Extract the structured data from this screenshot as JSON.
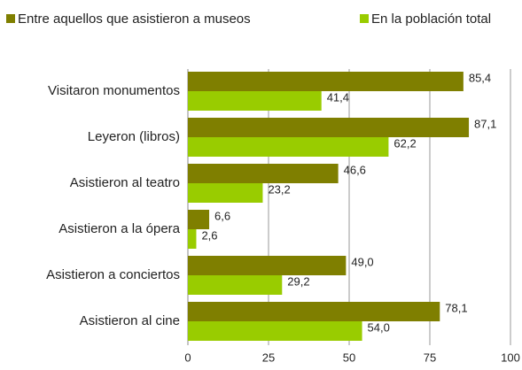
{
  "chart_data": {
    "type": "bar",
    "orientation": "horizontal",
    "categories": [
      "Visitaron monumentos",
      "Leyeron (libros)",
      "Asistieron al teatro",
      "Asistieron a la ópera",
      "Asistieron a conciertos",
      "Asistieron al cine"
    ],
    "series": [
      {
        "name": "Entre aquellos que asistieron a museos",
        "color": "#7f7f00",
        "values": [
          85.4,
          87.1,
          46.6,
          6.6,
          49.0,
          78.1
        ],
        "value_labels": [
          "85,4",
          "87,1",
          "46,6",
          "6,6",
          "49,0",
          "78,1"
        ]
      },
      {
        "name": "En la población total",
        "color": "#99cc00",
        "values": [
          41.4,
          62.2,
          23.2,
          2.6,
          29.2,
          54.0
        ],
        "value_labels": [
          "41,4",
          "62,2",
          "23,2",
          "2,6",
          "29,2",
          "54,0"
        ]
      }
    ],
    "xlim": [
      0,
      100
    ],
    "xticks": [
      0,
      25,
      50,
      75,
      100
    ],
    "grid": true,
    "legend": "top"
  }
}
